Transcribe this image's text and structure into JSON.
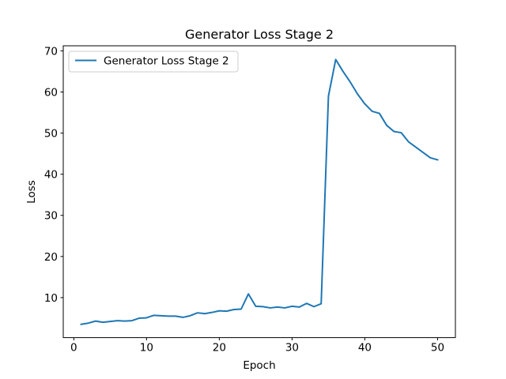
{
  "chart_data": {
    "type": "line",
    "title": "Generator Loss Stage 2",
    "xlabel": "Epoch",
    "ylabel": "Loss",
    "xlim": [
      -1.45,
      52.45
    ],
    "ylim": [
      0.27,
      71.23
    ],
    "xticks": [
      0,
      10,
      20,
      30,
      40,
      50
    ],
    "yticks": [
      10,
      20,
      30,
      40,
      50,
      60,
      70
    ],
    "grid": false,
    "legend_position": "top-left",
    "series": [
      {
        "name": "Generator Loss Stage 2",
        "color": "#1f77b4",
        "x": [
          1,
          2,
          3,
          4,
          5,
          6,
          7,
          8,
          9,
          10,
          11,
          12,
          13,
          14,
          15,
          16,
          17,
          18,
          19,
          20,
          21,
          22,
          23,
          24,
          25,
          26,
          27,
          28,
          29,
          30,
          31,
          32,
          33,
          34,
          35,
          36,
          37,
          38,
          39,
          40,
          41,
          42,
          43,
          44,
          45,
          46,
          47,
          48,
          49,
          50
        ],
        "y": [
          3.5,
          3.8,
          4.3,
          4.0,
          4.2,
          4.4,
          4.3,
          4.4,
          5.0,
          5.1,
          5.7,
          5.6,
          5.5,
          5.5,
          5.2,
          5.6,
          6.3,
          6.1,
          6.4,
          6.8,
          6.7,
          7.1,
          7.2,
          10.9,
          7.9,
          7.8,
          7.5,
          7.7,
          7.5,
          7.9,
          7.7,
          8.6,
          7.8,
          8.5,
          59.0,
          67.9,
          65.0,
          62.4,
          59.5,
          57.1,
          55.3,
          54.8,
          51.9,
          50.4,
          50.1,
          47.9,
          46.6,
          45.3,
          44.0,
          43.5
        ]
      }
    ]
  }
}
